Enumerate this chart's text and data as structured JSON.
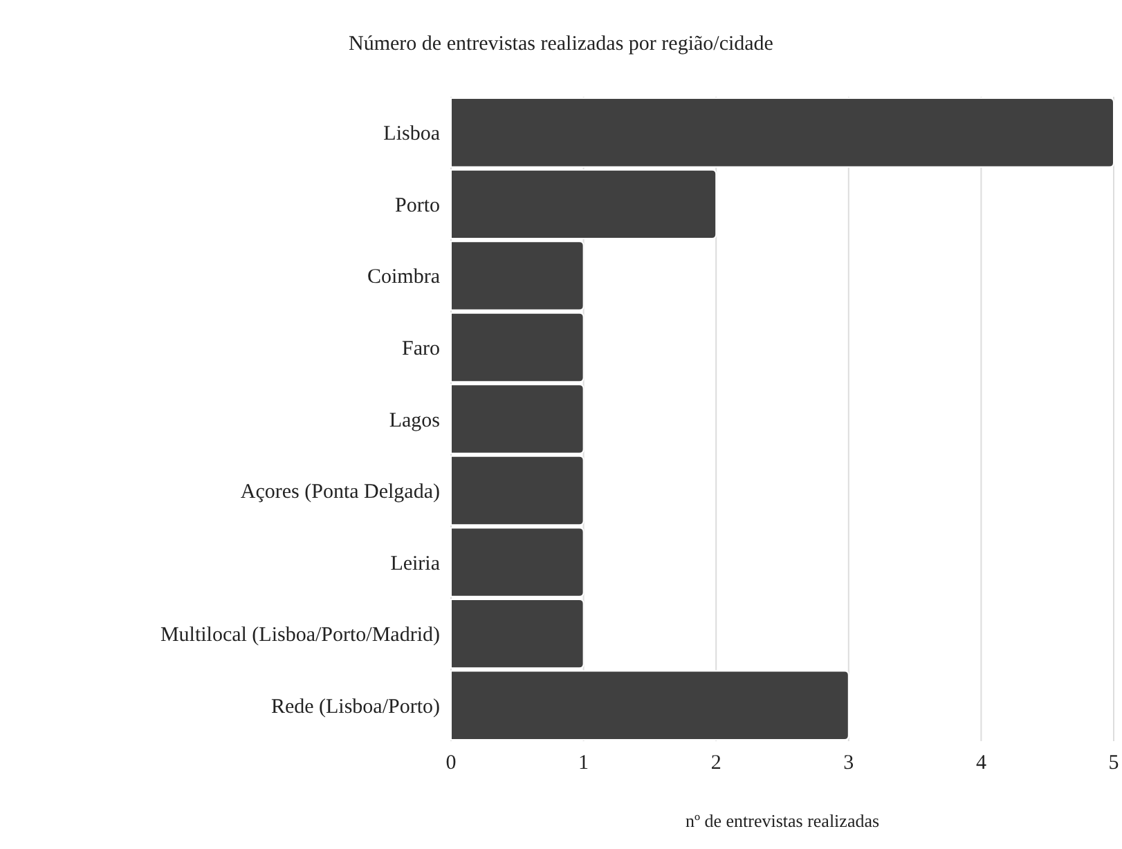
{
  "chart_data": {
    "type": "bar",
    "orientation": "horizontal",
    "title": "Número de entrevistas realizadas por região/cidade",
    "xlabel": "nº de entrevistas realizadas",
    "categories": [
      "Lisboa",
      "Porto",
      "Coimbra",
      "Faro",
      "Lagos",
      "Açores (Ponta Delgada)",
      "Leiria",
      "Multilocal (Lisboa/Porto/Madrid)",
      "Rede (Lisboa/Porto)"
    ],
    "values": [
      5,
      2,
      1,
      1,
      1,
      1,
      1,
      1,
      3
    ],
    "color": "#404040",
    "xlim": [
      0,
      5
    ],
    "xticks": [
      0,
      1,
      2,
      3,
      4,
      5
    ],
    "grid": "x"
  }
}
